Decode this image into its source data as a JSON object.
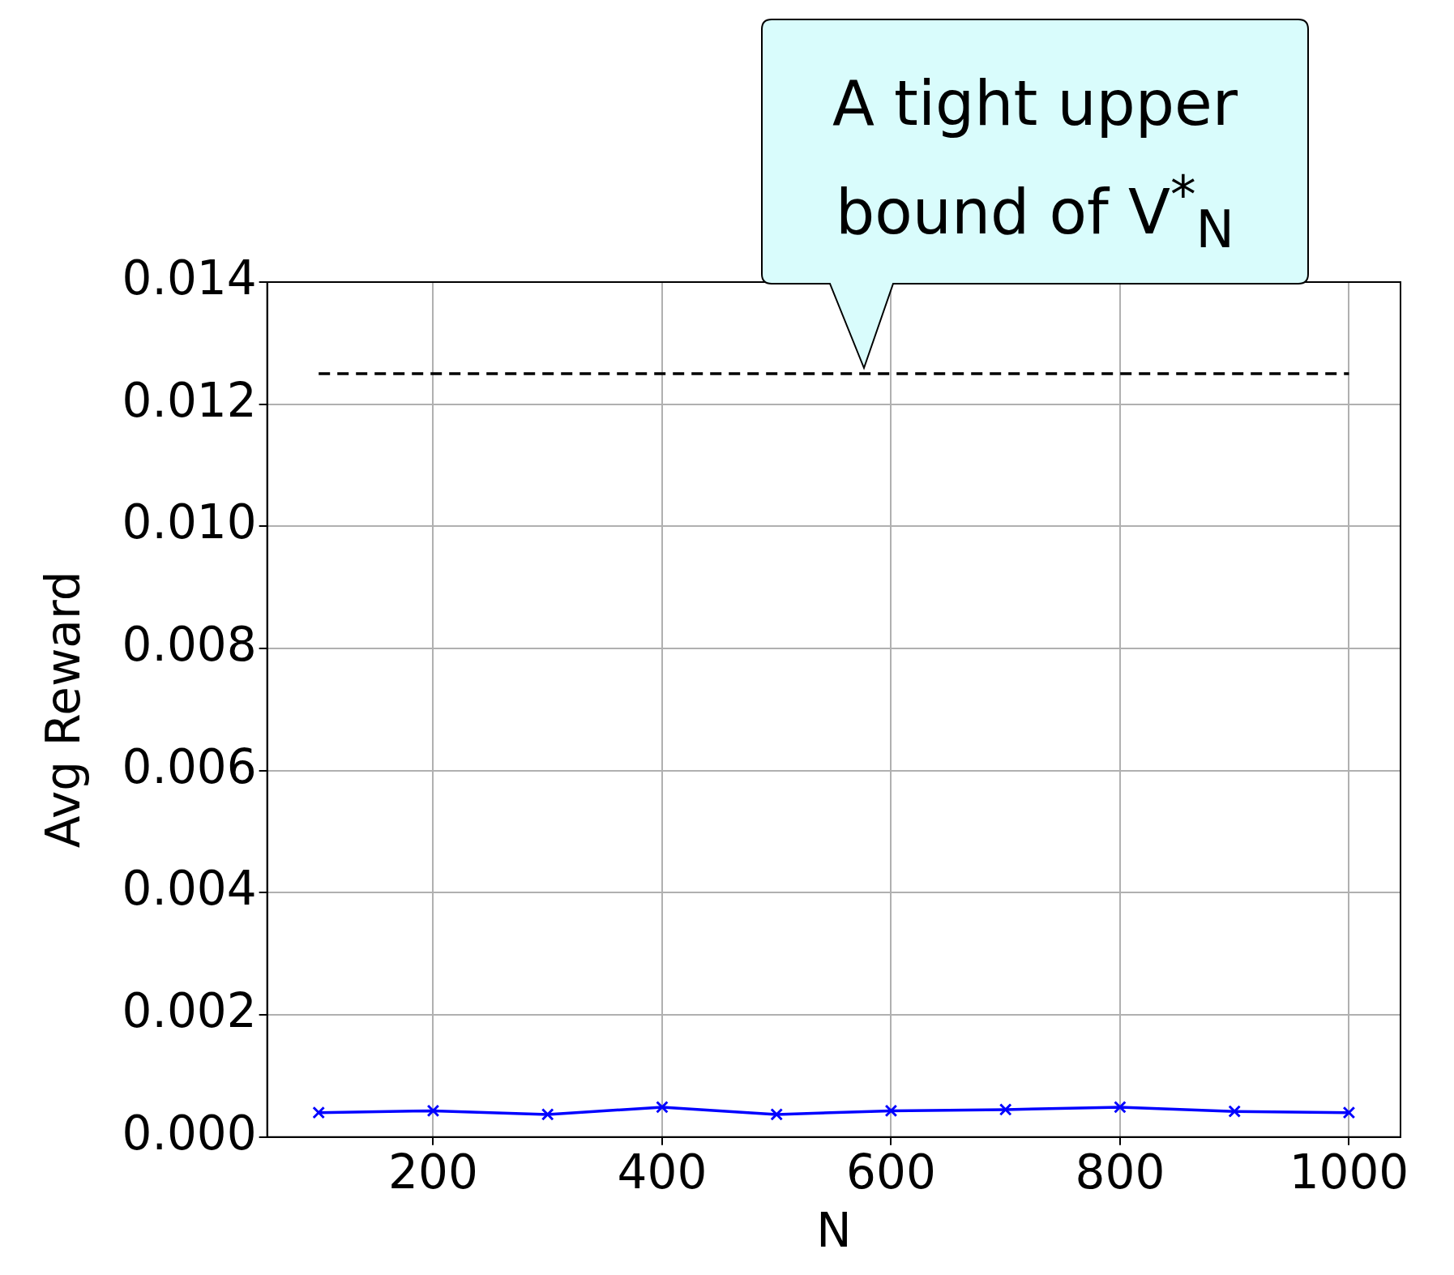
{
  "chart_data": {
    "type": "line",
    "xlabel": "N",
    "ylabel": "Avg Reward",
    "x": [
      100,
      200,
      300,
      400,
      500,
      600,
      700,
      800,
      900,
      1000
    ],
    "series": [
      {
        "color": "#0000ff",
        "values": [
          0.0004,
          0.00043,
          0.00037,
          0.00049,
          0.00037,
          0.00043,
          0.00045,
          0.00049,
          0.00042,
          0.0004
        ],
        "marker": "cross",
        "line_style": "solid"
      },
      {
        "color": "#000000",
        "x": [
          100,
          1000
        ],
        "values": [
          0.0125,
          0.0125
        ],
        "marker": "none",
        "line_style": "dashed"
      }
    ],
    "xlim": [
      55,
      1045
    ],
    "xticks": [
      200,
      400,
      600,
      800,
      1000
    ],
    "ylim": [
      0,
      0.014
    ],
    "yticks": [
      {
        "value": 0,
        "label": "0.000"
      },
      {
        "value": 0.002,
        "label": "0.002"
      },
      {
        "value": 0.004,
        "label": "0.004"
      },
      {
        "value": 0.006,
        "label": "0.006"
      },
      {
        "value": 0.008,
        "label": "0.008"
      },
      {
        "value": 0.01,
        "label": "0.010"
      },
      {
        "value": 0.012,
        "label": "0.012"
      },
      {
        "value": 0.014,
        "label": "0.014"
      }
    ],
    "grid": true,
    "legend": false,
    "annotations": [
      "A tight upper bound of V$^{*}$$_{N}$"
    ]
  }
}
